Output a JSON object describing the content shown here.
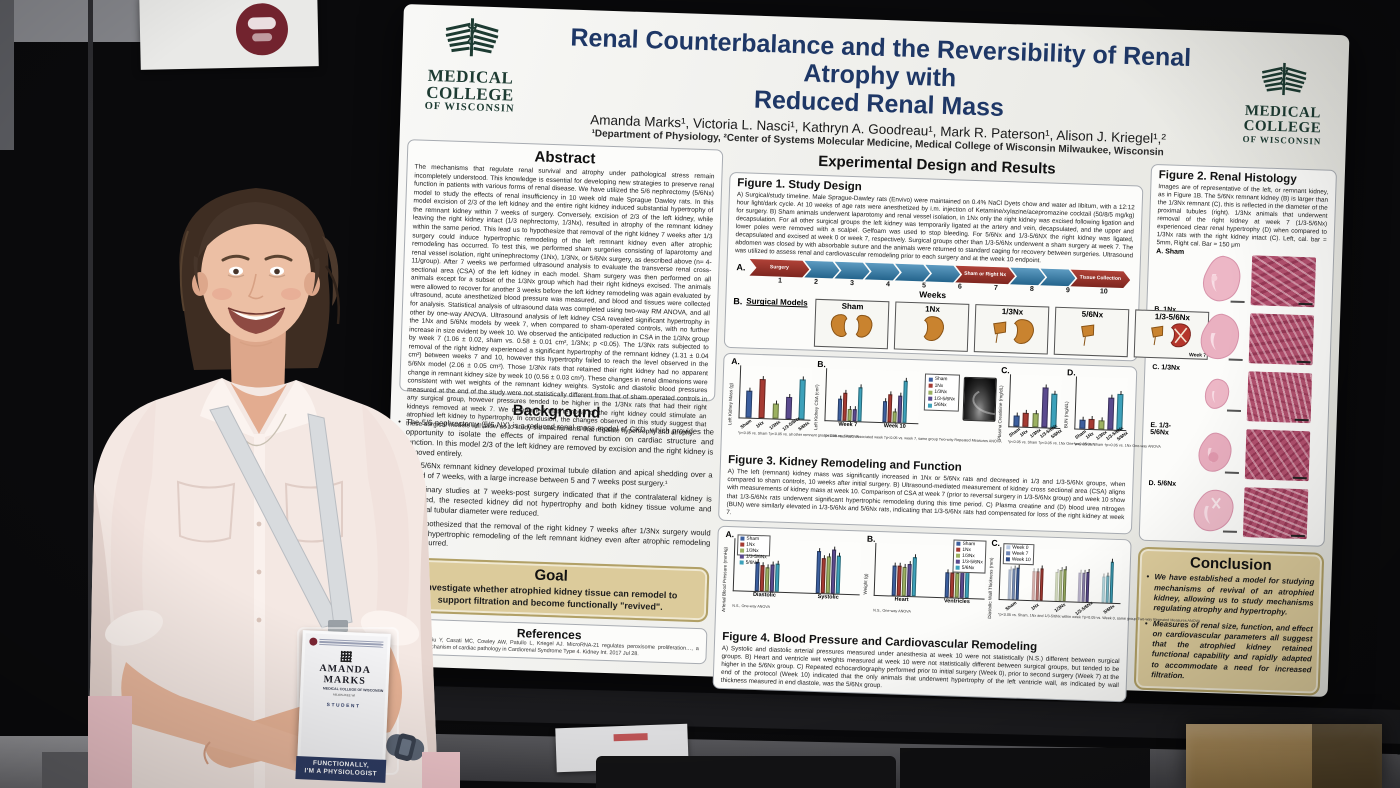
{
  "scene": {
    "badge": {
      "name_line1": "AMANDA",
      "name_line2": "MARKS",
      "org": "MEDICAL COLLEGE OF WISCONSIN",
      "city": "MILWAUKEE WI",
      "role": "STUDENT",
      "ribbon_line1": "FUNCTIONALLY,",
      "ribbon_line2": "I'M A PHYSIOLOGIST"
    }
  },
  "poster": {
    "accent_color": "#1e3766",
    "logo": {
      "line1": "MEDICAL",
      "line2": "COLLEGE",
      "line3": "OF WISCONSIN"
    },
    "title_line1": "Renal Counterbalance and the Reversibility of Renal Atrophy with",
    "title_line2": "Reduced Renal Mass",
    "authors": "Amanda Marks¹, Victoria L. Nasci¹, Kathryn A. Goodreau¹, Mark R. Paterson¹, Alison J. Kriegel¹,²",
    "affiliations": "¹Department of Physiology, ²Center of Systems Molecular Medicine, Medical College of Wisconsin Milwaukee, Wisconsin",
    "abstract": {
      "heading": "Abstract",
      "text": "The mechanisms that regulate renal survival and atrophy under pathological stress remain incompletely understood.  This knowledge is essential for developing new strategies to preserve renal function in patients with various forms of renal disease.  We have utilized the 5/6 nephrectomy (5/6Nx) model to study the effects of renal insufficiency in 10 week old male Sprague Dawley rats.  In this model excision of 2/3 of the left kidney and the entire right kidney induced substantial hypertrophy of the remnant kidney within 7 weeks of surgery. Conversely, excision of 2/3 of the left kidney, while leaving the right kidney intact (1/3 nephrectomy, 1/3Nx), resulted in atrophy of the remnant kidney within the same period.  This lead us to hypothesize that removal of the right kidney 7 weeks after 1/3 surgery could induce hypertrophic remodeling of the left remnant kidney even after atrophic remodeling has occurred.  To test this, we performed sham surgeries consisting of laparotomy and renal vessel isolation, right uninephrectomy (1Nx), 1/3Nx, or 5/6Nx surgery, as described above (n= 4-11/group).  After 7 weeks we performed ultrasound analysis to evaluate the transverse renal cross-sectional area (CSA) of the left kidney in each model.  Sham surgery was then performed on all animals except for a subset of the 1/3Nx group which had their right kidneys excised.  The animals were allowed to recover for another 3 weeks before the left kidney remodeling was again evaluated by ultrasound, acute anesthetized blood pressure was measured, and blood and tissues were collected for analysis.  Statistical analysis of ultrasound data was completed using two-way RM ANOVA, and all other by one-way ANOVA. Ultrasound analysis of left kidney CSA revealed significant hypertrophy in the 1Nx and 5/6Nx models by week 7, when compared to sham-operated controls, with no further increase in size evident by week 10. We observed the anticipated reduction in CSA in the 1/3Nx group by week 7 (1.06 ± 0.02, sham vs. 0.58 ± 0.01 cm², 1/3Nx; p <0.05).  The 1/3Nx rats subjected to removal of the right kidney experienced a significant hypertrophy of the remnant kidney (1.31 ± 0.04 cm²) between weeks 7 and 10, however this hypertrophy failed to reach the level observed in the 5/6Nx model (2.06 ± 0.05 cm²).  Those 1/3Nx rats that retained their right kidney had no apparent change in remnant kidney size by week 10 (0.56 ± 0.03 cm²).  These changes in renal dimensions were consistent with wet weights of the remnant kidney weights.  Systolic and diastolic blood pressures measured at the end of the study were not statistically different from that of sham operated controls in any surgical group, however pressures tended to be higher in the 1/3Nx rats that had their right kidneys removed at week 7.  We determined that removal of the right kidney could stimulate an atrophied left kidney to hypertrophy.  In conclusion, the changes observed in this study suggest that these surgical models will allow us to study the mechanisms that regulate hypertrophy and atrophy."
    },
    "background": {
      "heading": "Background",
      "bullets": [
        "The 5/6 nephrectomy (5/6 NX) is a reduced renal mass model of CKD, which provides the opportunity to isolate the effects of impaired renal function on cardiac structure and function.  In this model 2/3 of the left kidney are removed by excision and the right kidney is removed entirely.",
        "The 5/6Nx remnant kidney developed proximal tubule dilation and apical shedding over a period of 7 weeks, with a large increase between 5 and 7 weeks post surgery.¹",
        "Preliminary studies at 7 weeks-post surgery indicated that if the contralateral kidney is removed, the resected kidney did not hypertrophy and both kidney tissue volume and proximal tubular diameter were reduced.",
        "We hypothesized that the removal of the right kidney 7 weeks after 1/3Nx surgery would induce hypertrophic remodeling of the left remnant kidney even after atrophic remodeling has occurred."
      ]
    },
    "goal": {
      "heading": "Goal",
      "text": "Investigate whether atrophied kidney tissue can remodel to support filtration and become functionally \"revived\"."
    },
    "references": {
      "heading": "References",
      "text": "1. …Liu P, Liu Y, Casati MC, Cowley AW, Patullo L, Kriegel AJ. MicroRNA-21 regulates peroxisome proliferation…, a molecular mechanism of cardiac pathology in Cardiorenal Syndrome Type 4. Kidney Int. 2017 Jul 28."
    },
    "results_heading": "Experimental Design and Results",
    "figure1": {
      "heading": "Figure 1. Study Design",
      "caption": "A) Surgical/study timeline. Male Sprague-Dawley rats (Envivo) were maintained on 0.4% NaCl Dyets chow and water ad libitum, with a 12:12 hour light/dark cycle. At 10 weeks of age rats were anesthetized by i.m. injection of Ketamine/xylazine/acepromazine cocktail (50/8/5 mg/kg) for surgery.  B) Sham animals underwent laparotomy and renal vessel isolation, in 1Nx only the right kidney was excised following ligation and decapsulation. For all other surgical groups the left kidney was temporarily ligated at the artery and vein, decapsulated, and the upper and lower poles were removed with a scalpel. Gelfoam was used to stop bleeding. For 5/6Nx and 1/3-5/6NX the right kidney was ligated, decapsulated and excised at week 0 or week 7, respectively.  Surgical groups other than 1/3-5/6Nx underwent a sham surgery at week 7.  The abdomen was closed by with absorbable suture and the animals were returned to standard caging for recovery between surgeries. Ultrasound was utilized to assess renal and cardiovascular remodeling prior to each surgery and at the week 10 endpoint.",
      "panel_a": "A.",
      "panel_b": "B.",
      "timeline": {
        "start_label": "Surgery",
        "mid_label": "Sham or Right Nx",
        "end_label": "Tissue Collection",
        "weeks": [
          "1",
          "2",
          "3",
          "4",
          "5",
          "6",
          "7",
          "8",
          "9",
          "10"
        ],
        "axis_label": "Weeks"
      },
      "models_label": "Surgical Models",
      "models": [
        "Sham",
        "1Nx",
        "1/3Nx",
        "5/6Nx",
        "1/3-5/6Nx"
      ],
      "week7_note": "Week 7"
    },
    "figure2": {
      "heading": "Figure 2. Renal Histology",
      "caption": "Images are of representative of the left, or remnant kidney, as in Figure 1B. The 5/6Nx remnant kidney (B) is larger than the 1/3Nx remnant (C), this is reflected in the diameter of the proximal tubules (right). 1/3Nx animals that underwent removal of the right kidney at week 7 (1/3-5/6Nx) experienced clear renal hypertrophy (D) when compared to 1/3Nx rats with the right kidney intact (C). Left, cal. bar = 5mm, Right cal. Bar = 150 μm",
      "rows": [
        "A. Sham",
        "B. 1Nx",
        "C. 1/3Nx",
        "E. 1/3-5/6Nx",
        "D. 5/6Nx"
      ]
    },
    "figure3": {
      "heading": "Figure 3. Kidney Remodeling and Function",
      "caption": "A) The left (remnant) kidney mass was significantly increased in 1Nx or 5/6Nx rats and decreased in 1/3 and 1/3-5/6Nx groups, when compared to sham controls, 10 weeks after initial surgery.  B) Ultrasound-mediated measurement of kidney cross sectional area (CSA) aligns with measurements of kidney mass at week 10. Comparison of CSA at week 7 (prior to reversal surgery in 1/3-5/6Nx group) and week 10 show that 1/3-5/6Nx rats underwent significant hypertrophic remodeling during this time period.  C) Plasma creatine and (D) blood urea nitrogen (BUN) were similarly elevated in 1/3-5/6Nx and 5/6Nx rats, indicating that 1/3-5/6Nx rats had compensated for loss of the right kidney at week 7."
    },
    "figure4": {
      "heading": "Figure 4. Blood Pressure and Cardiovascular Remodeling",
      "caption": "A) Systolic and diastolic arterial pressures measured under anesthesia at week 10 were not statistically (N.S.) different between surgical groups.  B) Heart and ventricle wet weights measured at week 10 were not statistically different between surgical groups, but tended to be higher in the 5/6Nx group.  C) Repeated echocardiography performed prior to initial surgery (Week 0), prior to second surgery (Week 7) at the end of the protocol (Week 10) indicated that the only animals that underwent hypertrophy of the left ventricle wall, as indicated by wall thickness measured in end diastole, was the 5/6Nx group."
    },
    "conclusion": {
      "heading": "Conclusion",
      "bullets": [
        "We have established a model for studying mechanisms of revival of an atrophied kidney, allowing us to study mechanisms regulating atrophy and hypertrophy.",
        "Measures of renal size, function, and effect on cardiovascular parameters all suggest that the atrophied kidney retained functional capability and rapidly adapted to accommodate a need for increased filtration."
      ]
    }
  },
  "legend": {
    "groups": [
      "Sham",
      "1Nx",
      "1/3Nx",
      "1/3-5/6Nx",
      "5/6Nx"
    ],
    "colors": {
      "Sham": "#3c5f9e",
      "1Nx": "#a53a32",
      "1/3Nx": "#9cb161",
      "1/3-5/6Nx": "#5a4a8e",
      "5/6Nx": "#3da1ba",
      "Diastolic": "#3c5f9e",
      "Systolic": "#3c5f9e",
      "Heart": "#3c5f9e",
      "Ventricles": "#3c5f9e"
    }
  },
  "chart_data": [
    {
      "id": "fig3a",
      "panel": "A.",
      "type": "bar",
      "ylabel": "Left Kidney Mass (g)",
      "categories": [
        "Sham",
        "1Nx",
        "1/3Nx",
        "1/3-5/6Nx",
        "5/6Nx"
      ],
      "values": [
        1.3,
        1.9,
        0.72,
        1.1,
        1.95
      ],
      "ylim": [
        0,
        2.5
      ],
      "footnote": "*p<0.05 vs. Sham  †p<0.05 vs. all other remnant groups  One-way ANOVA"
    },
    {
      "id": "fig3b",
      "panel": "B.",
      "type": "grouped-bar",
      "ylabel": "Left Kidney CSA (cm²)",
      "groups": [
        "Week 7",
        "Week 10"
      ],
      "series": [
        {
          "name": "Sham",
          "values": [
            1.06,
            1.05
          ]
        },
        {
          "name": "1Nx",
          "values": [
            1.35,
            1.36
          ]
        },
        {
          "name": "1/3Nx",
          "values": [
            0.58,
            0.56
          ]
        },
        {
          "name": "1/3-5/6Nx",
          "values": [
            0.6,
            1.31
          ]
        },
        {
          "name": "5/6Nx",
          "values": [
            1.65,
            2.06
          ]
        }
      ],
      "ylim": [
        0,
        2.5
      ],
      "footnote": "*p<0.05 vs. Sham, associated week  †p<0.05 vs. week 7, same group  Two-way Repeated Measures ANOVA"
    },
    {
      "id": "fig3c",
      "panel": "C.",
      "type": "bar",
      "ylabel": "Plasma Creatinine (mg/dL)",
      "categories": [
        "Sham",
        "1Nx",
        "1/3Nx",
        "1/3-5/6Nx",
        "5/6Nx"
      ],
      "values": [
        0.35,
        0.45,
        0.43,
        1.25,
        1.05
      ],
      "ylim": [
        0,
        1.6
      ],
      "footnote": "*p<0.05 vs. Sham  †p<0.05 vs. 1Nx  One-way ANOVA"
    },
    {
      "id": "fig3d",
      "panel": "D.",
      "type": "bar",
      "ylabel": "BUN (mg/dL)",
      "categories": [
        "Sham",
        "1Nx",
        "1/3Nx",
        "1/3-5/6Nx",
        "5/6Nx"
      ],
      "values": [
        15,
        16,
        15,
        50,
        56
      ],
      "ylim": [
        0,
        80
      ],
      "footnote": "*p<0.05 vs. Sham  †p<0.05 vs. 1Nx  One-way ANOVA"
    },
    {
      "id": "fig4a",
      "panel": "A.",
      "type": "grouped-bar",
      "ylabel": "Arterial Blood Pressure (mmHg)",
      "groups": [
        "Diastolic",
        "Systolic"
      ],
      "series": [
        {
          "name": "Sham",
          "values": [
            88,
            128
          ]
        },
        {
          "name": "1Nx",
          "values": [
            78,
            108
          ]
        },
        {
          "name": "1/3Nx",
          "values": [
            73,
            112
          ]
        },
        {
          "name": "1/3-5/6Nx",
          "values": [
            82,
            133
          ]
        },
        {
          "name": "5/6Nx",
          "values": [
            84,
            116
          ]
        }
      ],
      "ylim": [
        0,
        160
      ],
      "legend": true,
      "legend_pos": "tl",
      "footnote": "N.S., One-way ANOVA"
    },
    {
      "id": "fig4b",
      "panel": "B.",
      "type": "grouped-bar",
      "ylabel": "Weight (g)",
      "groups": [
        "Heart",
        "Ventricles"
      ],
      "series": [
        {
          "name": "Sham",
          "values": [
            1.42,
            1.2
          ]
        },
        {
          "name": "1Nx",
          "values": [
            1.42,
            1.18
          ]
        },
        {
          "name": "1/3Nx",
          "values": [
            1.38,
            1.2
          ]
        },
        {
          "name": "1/3-5/6Nx",
          "values": [
            1.52,
            1.3
          ]
        },
        {
          "name": "5/6Nx",
          "values": [
            1.85,
            1.55
          ]
        }
      ],
      "ylim": [
        0,
        2.5
      ],
      "legend": true,
      "legend_pos": "tr",
      "footnote": "N.S., One-way ANOVA"
    },
    {
      "id": "fig4c",
      "panel": "C.",
      "type": "grouped-bar",
      "shade": true,
      "rotate_xlab": true,
      "ylabel": "Diastolic Wall Thickness (mm)",
      "groups": [
        "Sham",
        "1Nx",
        "1/3Nx",
        "1/3-5/6Nx",
        "5/6Nx"
      ],
      "series": [
        {
          "name": "Week 0",
          "values": [
            2.0,
            1.9,
            1.95,
            1.9,
            1.75
          ]
        },
        {
          "name": "Week 7",
          "values": [
            2.05,
            1.95,
            2.05,
            1.95,
            1.8
          ]
        },
        {
          "name": "Week 10",
          "values": [
            2.1,
            2.1,
            2.1,
            2.0,
            2.75
          ]
        }
      ],
      "ylim": [
        0,
        3.5
      ],
      "legend": true,
      "legend_pos": "tl",
      "footnote": "*p<0.05 vs. Sham, 1Nx and 1/3-5/6Nx within week  †p<0.05 vs. Week 0, same group  Two-way Repeated Measures ANOVA"
    }
  ]
}
